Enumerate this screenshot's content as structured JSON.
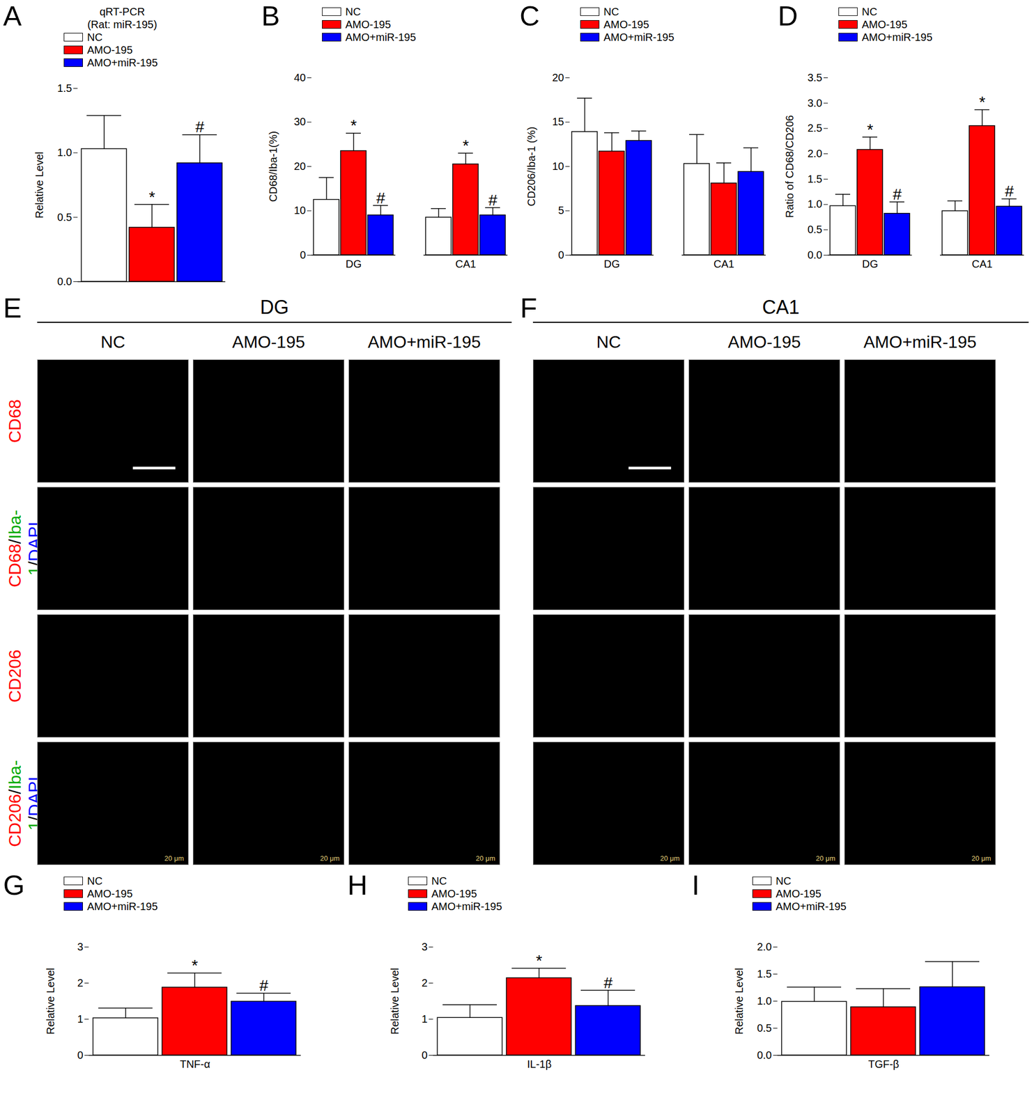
{
  "chart_data": [
    {
      "panel": "A",
      "type": "bar",
      "title": "qRT-PCR",
      "subtitle": "(Rat: miR-195)",
      "y_label": "Relative Level",
      "categories": [
        null
      ],
      "legend": "top-left",
      "ylim": [
        0,
        1.5
      ],
      "yticks": [
        {
          "value": 0,
          "label": "0.0"
        },
        {
          "value": 0.5,
          "label": "0.5"
        },
        {
          "value": 1,
          "label": "1.0"
        },
        1.5
      ],
      "series": [
        {
          "name": "NC",
          "color": "#ffffff",
          "values": [
            1.03
          ],
          "errors": [
            0.26
          ],
          "significance": [
            null
          ]
        },
        {
          "name": "AMO-195",
          "color": "#ff0000",
          "values": [
            0.42
          ],
          "errors": [
            0.18
          ],
          "significance": [
            "*"
          ]
        },
        {
          "name": "AMO+miR-195",
          "color": "#0000ff",
          "values": [
            0.92
          ],
          "errors": [
            0.22
          ],
          "significance": [
            "#"
          ]
        }
      ]
    },
    {
      "panel": "B",
      "type": "bar",
      "y_label": "CD68/Iba-1(%)",
      "categories": [
        "DG",
        "CA1"
      ],
      "legend": "top-left",
      "ylim": [
        0,
        40
      ],
      "yticks": [
        0,
        10,
        20,
        30,
        40
      ],
      "series": [
        {
          "name": "NC",
          "color": "#ffffff",
          "values": [
            12.5,
            8.5
          ],
          "errors": [
            5.0,
            2.0
          ],
          "significance": [
            null,
            null
          ]
        },
        {
          "name": "AMO-195",
          "color": "#ff0000",
          "values": [
            23.5,
            20.5
          ],
          "errors": [
            4.0,
            2.5
          ],
          "significance": [
            "*",
            "*"
          ]
        },
        {
          "name": "AMO+miR-195",
          "color": "#0000ff",
          "values": [
            9.0,
            9.0
          ],
          "errors": [
            2.2,
            1.7
          ],
          "significance": [
            "#",
            "#"
          ]
        }
      ]
    },
    {
      "panel": "C",
      "type": "bar",
      "y_label": "CD206/Iba-1 (%)",
      "categories": [
        "DG",
        "CA1"
      ],
      "legend": "top-left",
      "ylim": [
        0,
        20
      ],
      "yticks": [
        0,
        5,
        10,
        15,
        20
      ],
      "series": [
        {
          "name": "NC",
          "color": "#ffffff",
          "values": [
            13.9,
            10.3
          ],
          "errors": [
            3.8,
            3.3
          ],
          "significance": [
            null,
            null
          ]
        },
        {
          "name": "AMO-195",
          "color": "#ff0000",
          "values": [
            11.7,
            8.1
          ],
          "errors": [
            2.1,
            2.3
          ],
          "significance": [
            null,
            null
          ]
        },
        {
          "name": "AMO+miR-195",
          "color": "#0000ff",
          "values": [
            12.9,
            9.4
          ],
          "errors": [
            1.1,
            2.7
          ],
          "significance": [
            null,
            null
          ]
        }
      ]
    },
    {
      "panel": "D",
      "type": "bar",
      "y_label": "Ratio of CD68/CD206",
      "categories": [
        "DG",
        "CA1"
      ],
      "legend": "top-left",
      "ylim": [
        0,
        3.5
      ],
      "yticks": [
        {
          "value": 0,
          "label": "0.0"
        },
        0.5,
        {
          "value": 1,
          "label": "1.0"
        },
        1.5,
        {
          "value": 2,
          "label": "2.0"
        },
        2.5,
        {
          "value": 3,
          "label": "3.0"
        },
        3.5
      ],
      "series": [
        {
          "name": "NC",
          "color": "#ffffff",
          "values": [
            0.97,
            0.87
          ],
          "errors": [
            0.23,
            0.2
          ],
          "significance": [
            null,
            null
          ]
        },
        {
          "name": "AMO-195",
          "color": "#ff0000",
          "values": [
            2.08,
            2.55
          ],
          "errors": [
            0.25,
            0.32
          ],
          "significance": [
            "*",
            "*"
          ]
        },
        {
          "name": "AMO+miR-195",
          "color": "#0000ff",
          "values": [
            0.82,
            0.96
          ],
          "errors": [
            0.23,
            0.15
          ],
          "significance": [
            "#",
            "#"
          ]
        }
      ]
    },
    {
      "panel": "G",
      "type": "bar",
      "y_label": "Relative Level",
      "categories": [
        "TNF-α"
      ],
      "legend": "top-left",
      "ylim": [
        0,
        3
      ],
      "yticks": [
        0,
        1,
        2,
        3
      ],
      "series": [
        {
          "name": "NC",
          "color": "#ffffff",
          "values": [
            1.03
          ],
          "errors": [
            0.28
          ],
          "significance": [
            null
          ]
        },
        {
          "name": "AMO-195",
          "color": "#ff0000",
          "values": [
            1.88
          ],
          "errors": [
            0.4
          ],
          "significance": [
            "*"
          ]
        },
        {
          "name": "AMO+miR-195",
          "color": "#0000ff",
          "values": [
            1.49
          ],
          "errors": [
            0.23
          ],
          "significance": [
            "#"
          ]
        }
      ]
    },
    {
      "panel": "H",
      "type": "bar",
      "y_label": "Relative Level",
      "categories": [
        "IL-1β"
      ],
      "legend": "top-left",
      "ylim": [
        0,
        3
      ],
      "yticks": [
        0,
        1,
        2,
        3
      ],
      "series": [
        {
          "name": "NC",
          "color": "#ffffff",
          "values": [
            1.04
          ],
          "errors": [
            0.36
          ],
          "significance": [
            null
          ]
        },
        {
          "name": "AMO-195",
          "color": "#ff0000",
          "values": [
            2.14
          ],
          "errors": [
            0.27
          ],
          "significance": [
            "*"
          ]
        },
        {
          "name": "AMO+miR-195",
          "color": "#0000ff",
          "values": [
            1.37
          ],
          "errors": [
            0.43
          ],
          "significance": [
            "#"
          ]
        }
      ]
    },
    {
      "panel": "I",
      "type": "bar",
      "y_label": "Relative Level",
      "categories": [
        "TGF-β"
      ],
      "legend": "top-left",
      "ylim": [
        0,
        2
      ],
      "yticks": [
        {
          "value": 0,
          "label": "0.0"
        },
        0.5,
        {
          "value": 1,
          "label": "1.0"
        },
        1.5,
        {
          "value": 2,
          "label": "2.0"
        }
      ],
      "series": [
        {
          "name": "NC",
          "color": "#ffffff",
          "values": [
            0.99
          ],
          "errors": [
            0.27
          ],
          "significance": [
            null
          ]
        },
        {
          "name": "AMO-195",
          "color": "#ff0000",
          "values": [
            0.89
          ],
          "errors": [
            0.34
          ],
          "significance": [
            null
          ]
        },
        {
          "name": "AMO+miR-195",
          "color": "#0000ff",
          "values": [
            1.26
          ],
          "errors": [
            0.47
          ],
          "significance": [
            null
          ]
        }
      ]
    }
  ],
  "image_panels": [
    {
      "panel": "E",
      "title": "DG",
      "columns": [
        "NC",
        "AMO-195",
        "AMO+miR-195"
      ],
      "row_labels": [
        "CD68",
        "CD68/Iba-1/DAPI",
        "CD206",
        "CD206/Iba-1/DAPI"
      ],
      "scale_bar": "20 μm"
    },
    {
      "panel": "F",
      "title": "CA1",
      "columns": [
        "NC",
        "AMO-195",
        "AMO+miR-195"
      ],
      "scale_bar": "20 μm"
    }
  ]
}
